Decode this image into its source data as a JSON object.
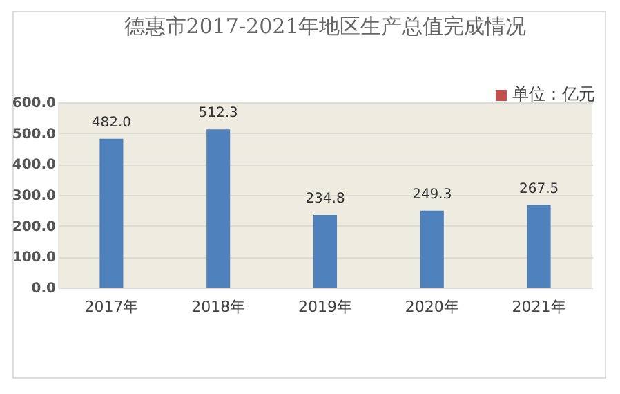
{
  "chart_data": {
    "type": "bar",
    "title": "德惠市2017-2021年地区生产总值完成情况",
    "annotations": [
      "单位：亿元"
    ],
    "categories": [
      "2017年",
      "2018年",
      "2019年",
      "2020年",
      "2021年"
    ],
    "values": [
      482.0,
      512.3,
      234.8,
      249.3,
      267.5
    ],
    "color": "#4f81bd",
    "value_labels": [
      "482.0",
      "512.3",
      "234.8",
      "249.3",
      "267.5"
    ],
    "ylim": [
      0,
      600
    ],
    "yticks": [
      {
        "value": 0,
        "label": "0.0"
      },
      {
        "value": 100,
        "label": "100.0"
      },
      {
        "value": 200,
        "label": "200.0"
      },
      {
        "value": 300,
        "label": "300.0"
      },
      {
        "value": 400,
        "label": "400.0"
      },
      {
        "value": 500,
        "label": "500.0"
      },
      {
        "value": 600,
        "label": "600.0"
      }
    ],
    "grid": "y"
  }
}
